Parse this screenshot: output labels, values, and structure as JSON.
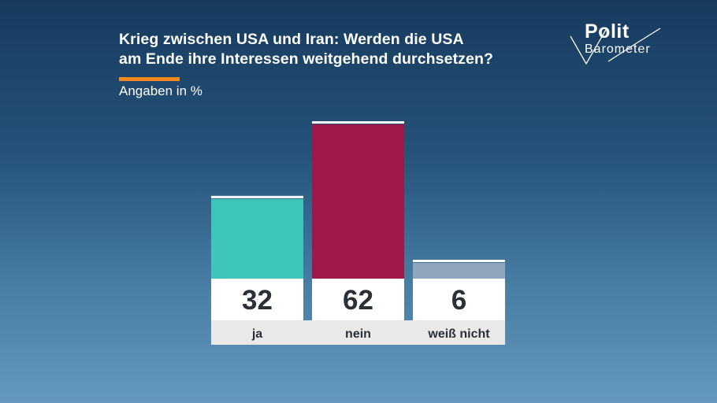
{
  "header": {
    "title_line1": "Krieg zwischen USA und Iran: Werden die USA",
    "title_line2": "am Ende ihre Interessen weitgehend durchsetzen?",
    "subtitle": "Angaben in %",
    "accent_color": "#f08a1c"
  },
  "logo": {
    "line1": "Polit",
    "line2": "Barometer"
  },
  "chart_data": {
    "type": "bar",
    "title": "Krieg zwischen USA und Iran: Werden die USA am Ende ihre Interessen weitgehend durchsetzen?",
    "subtitle": "Angaben in %",
    "categories": [
      "ja",
      "nein",
      "weiß nicht"
    ],
    "values": [
      32,
      62,
      6
    ],
    "colors": [
      "#3ec6b8",
      "#a0184a",
      "#8fa6bd"
    ],
    "ylim": [
      0,
      62
    ],
    "grid": false,
    "value_labels": [
      "32",
      "62",
      "6"
    ]
  }
}
